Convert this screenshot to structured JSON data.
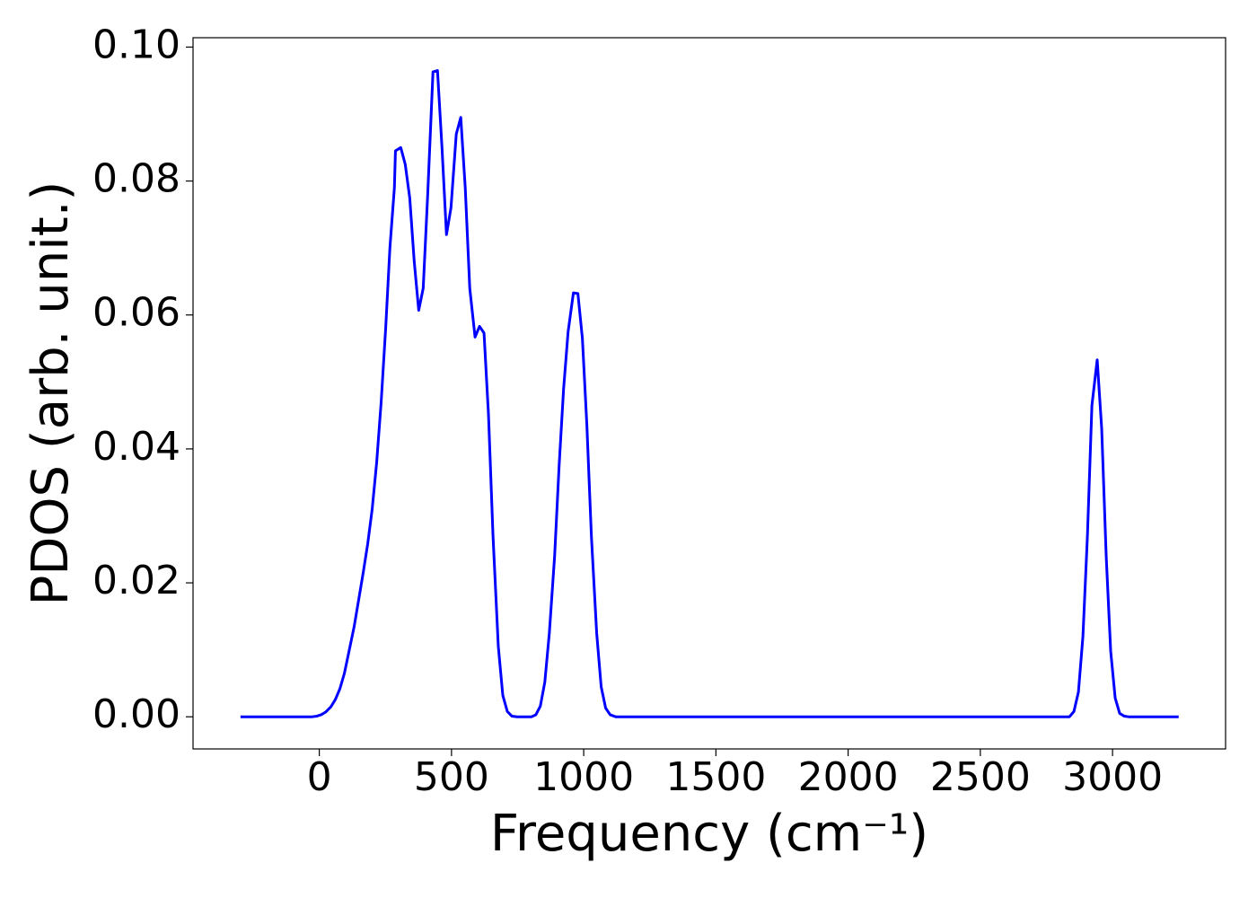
{
  "chart_data": {
    "type": "line",
    "xlabel": "Frequency (cm⁻¹)",
    "ylabel": "PDOS (arb. unit.)",
    "x": [
      -298,
      -36,
      -27,
      -9,
      7,
      24,
      44,
      61,
      78,
      95,
      112,
      132,
      149,
      166,
      183,
      200,
      217,
      234,
      251,
      267,
      284,
      288,
      308,
      325,
      342,
      359,
      376,
      393,
      410,
      430,
      447,
      464,
      481,
      498,
      518,
      535,
      552,
      569,
      589,
      606,
      623,
      640,
      657,
      677,
      694,
      711,
      728,
      748,
      802,
      819,
      836,
      853,
      870,
      890,
      907,
      924,
      941,
      961,
      978,
      995,
      1012,
      1029,
      1049,
      1066,
      1083,
      1100,
      1121,
      2837,
      2854,
      2871,
      2888,
      2905,
      2922,
      2942,
      2959,
      2976,
      2993,
      3010,
      3027,
      3044,
      3061,
      3250
    ],
    "values": [
      0,
      0,
      0,
      0.0001,
      0.0003,
      0.0007,
      0.0015,
      0.0026,
      0.0042,
      0.0065,
      0.0097,
      0.0135,
      0.0175,
      0.0215,
      0.0258,
      0.031,
      0.038,
      0.047,
      0.058,
      0.07,
      0.079,
      0.0845,
      0.085,
      0.0825,
      0.0775,
      0.068,
      0.0607,
      0.064,
      0.078,
      0.0963,
      0.0965,
      0.085,
      0.072,
      0.076,
      0.087,
      0.0895,
      0.079,
      0.064,
      0.0567,
      0.0583,
      0.0573,
      0.045,
      0.027,
      0.0105,
      0.0032,
      0.0008,
      0.0001,
      0,
      0,
      0.0003,
      0.0016,
      0.0052,
      0.0125,
      0.024,
      0.0375,
      0.049,
      0.0575,
      0.0633,
      0.0632,
      0.0565,
      0.0435,
      0.027,
      0.0125,
      0.0045,
      0.0013,
      0.0003,
      0,
      0,
      0.0008,
      0.0037,
      0.012,
      0.027,
      0.0465,
      0.0533,
      0.043,
      0.024,
      0.0098,
      0.0028,
      0.0005,
      0.0001,
      0,
      0
    ],
    "color": "#0000ff",
    "xlim": [
      -477.5,
      3427.5
    ],
    "ylim": [
      -0.0048,
      0.1014
    ],
    "xticks": [
      0,
      500,
      1000,
      1500,
      2000,
      2500,
      3000
    ],
    "yticks": [
      {
        "value": 0,
        "label": "0.00"
      },
      {
        "value": 0.02,
        "label": "0.02"
      },
      {
        "value": 0.04,
        "label": "0.04"
      },
      {
        "value": 0.06,
        "label": "0.06"
      },
      {
        "value": 0.08,
        "label": "0.08"
      },
      {
        "value": 0.1,
        "label": "0.10"
      }
    ],
    "grid": false
  }
}
